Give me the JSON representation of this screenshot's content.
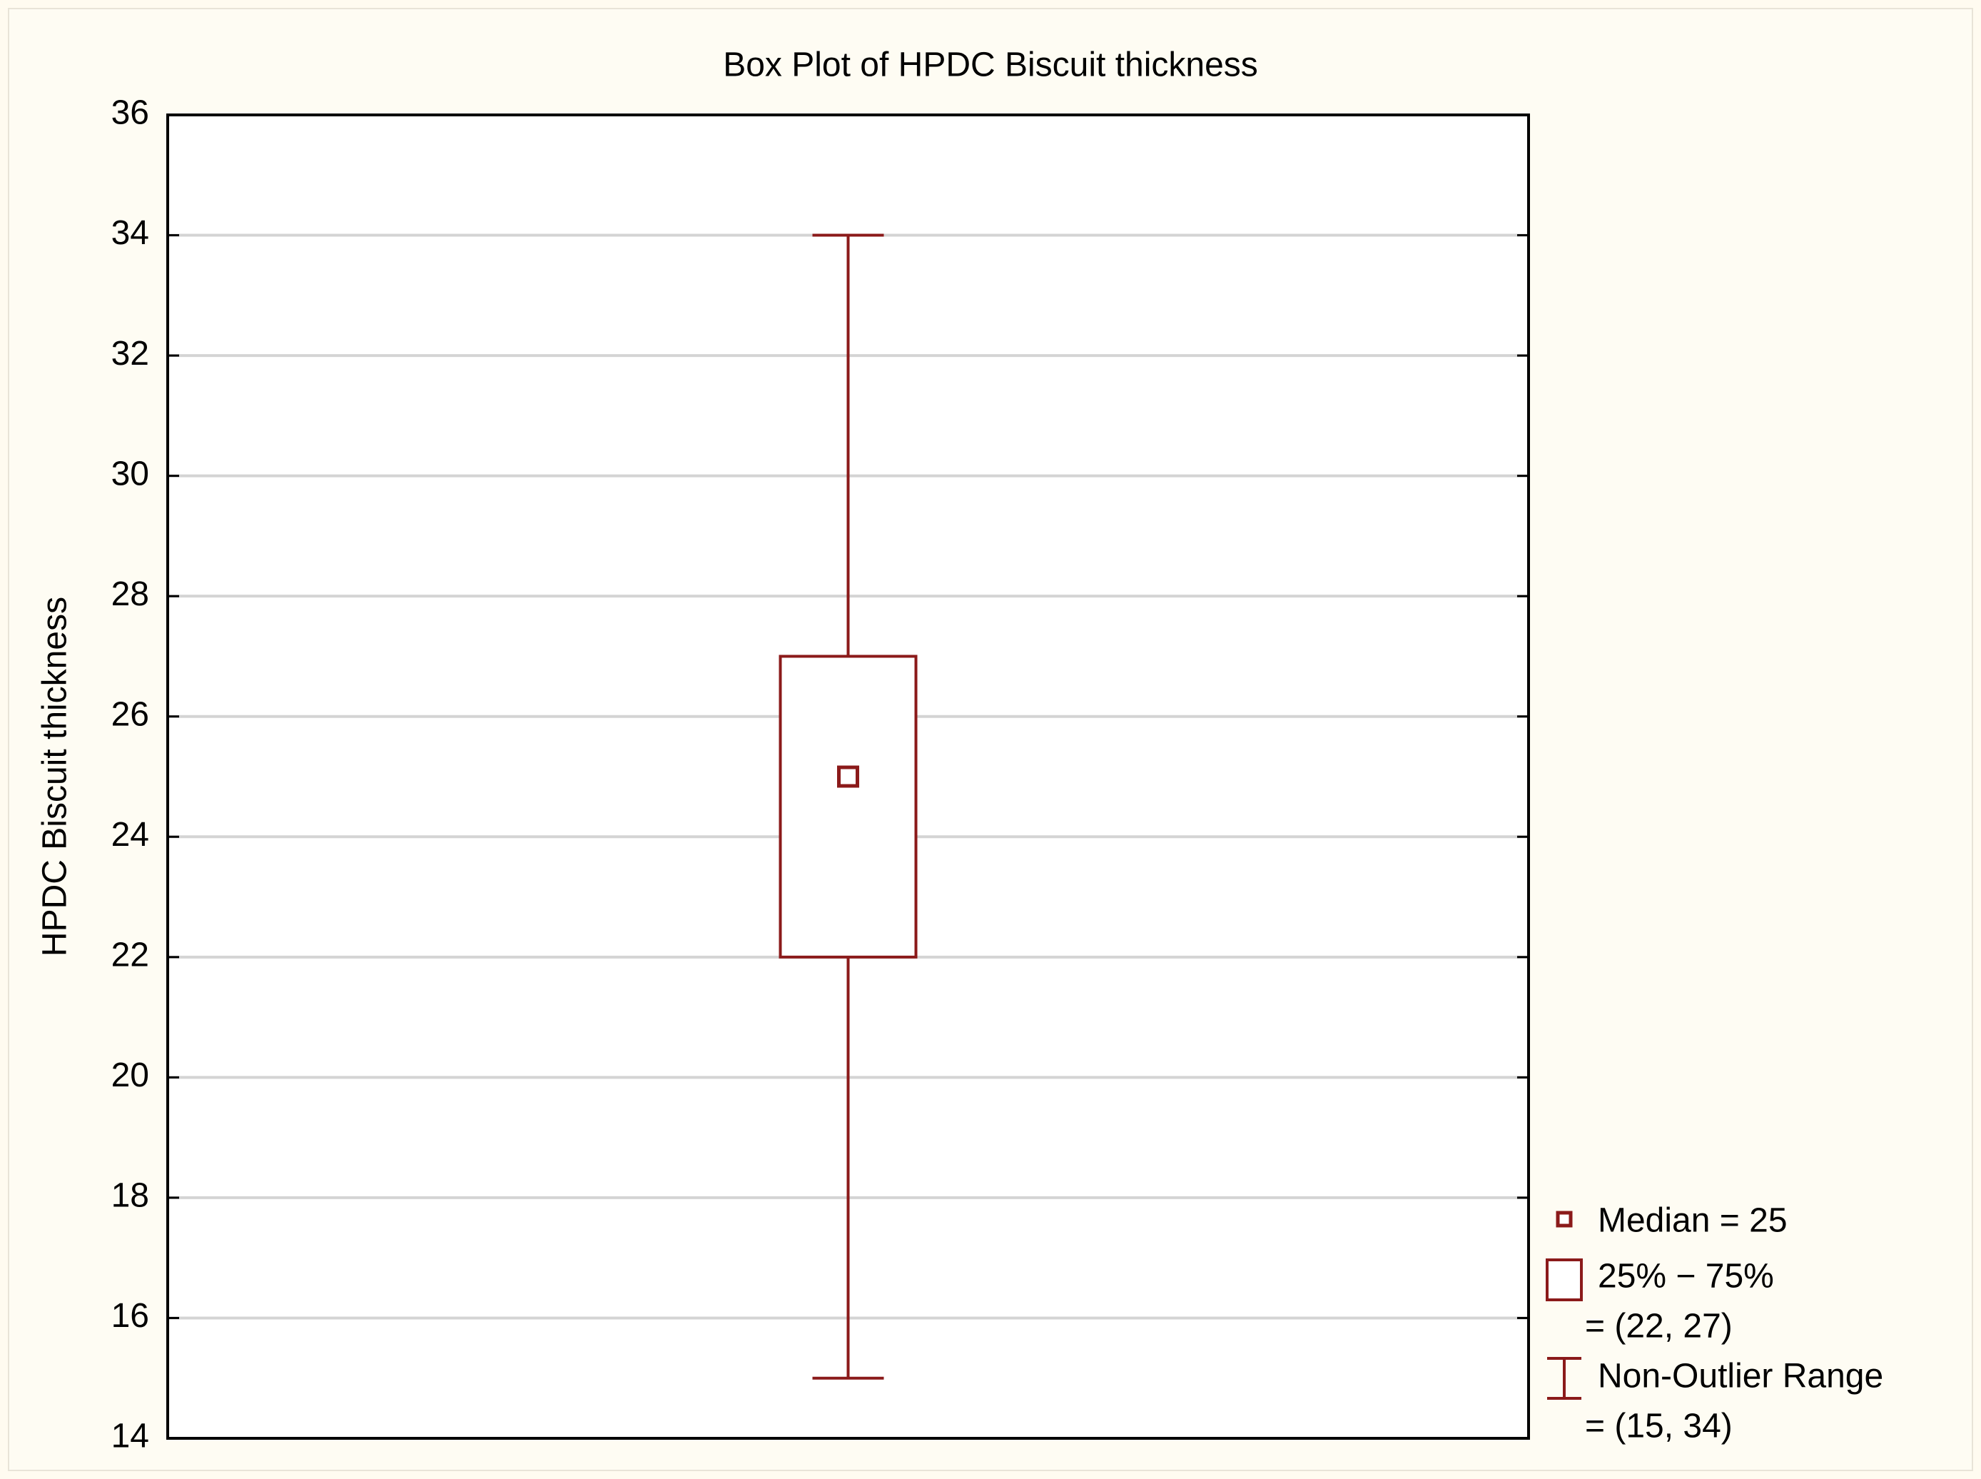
{
  "chart_data": {
    "type": "box",
    "title": "Box Plot of HPDC Biscuit thickness",
    "y_label": "HPDC Biscuit thickness",
    "ylim": [
      14,
      36
    ],
    "yticks": [
      14,
      16,
      18,
      20,
      22,
      24,
      26,
      28,
      30,
      32,
      34,
      36
    ],
    "grid": true,
    "color": "#8b1a1a",
    "boxes": [
      {
        "median": 25,
        "q1": 22,
        "q3": 27,
        "whisker_low": 15,
        "whisker_high": 34
      }
    ],
    "legend": {
      "position": "right-bottom",
      "entries": [
        {
          "symbol": "median",
          "lines": [
            "Median = 25"
          ]
        },
        {
          "symbol": "box",
          "lines": [
            "25% − 75%",
            "= (22, 27)"
          ]
        },
        {
          "symbol": "whisker",
          "lines": [
            "Non-Outlier Range",
            "= (15, 34)"
          ]
        }
      ]
    }
  }
}
